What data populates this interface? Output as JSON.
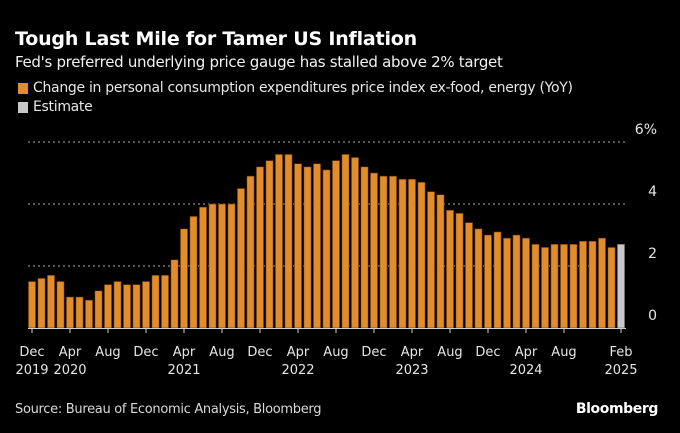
{
  "header": {
    "title": "Tough Last Mile for Tamer US Inflation",
    "subtitle": "Fed's preferred underlying price gauge has stalled above 2% target"
  },
  "legend": [
    {
      "label": "Change in personal consumption expenditures price index ex-food, energy (YoY)",
      "color": "#E28D2B"
    },
    {
      "label": "Estimate",
      "color": "#C8C8C8"
    }
  ],
  "footer": {
    "source": "Source: Bureau of Economic Analysis, Bloomberg",
    "brand": "Bloomberg"
  },
  "chart_data": {
    "type": "bar",
    "title": "Tough Last Mile for Tamer US Inflation",
    "subtitle": "Fed's preferred underlying price gauge has stalled above 2% target",
    "xlabel": "",
    "ylabel": "",
    "ylim": [
      0,
      6
    ],
    "y_ticks": [
      0,
      2,
      4,
      6
    ],
    "y_tick_labels": [
      "0",
      "2",
      "4",
      "6%"
    ],
    "y_axis_position": "right",
    "grid": true,
    "legend_position": "top-left",
    "x_tick_labels": [
      {
        "index": 0,
        "line1": "Dec",
        "line2": "2019"
      },
      {
        "index": 4,
        "line1": "Apr",
        "line2": "2020"
      },
      {
        "index": 8,
        "line1": "Aug",
        "line2": ""
      },
      {
        "index": 12,
        "line1": "Dec",
        "line2": ""
      },
      {
        "index": 16,
        "line1": "Apr",
        "line2": "2021"
      },
      {
        "index": 20,
        "line1": "Aug",
        "line2": ""
      },
      {
        "index": 24,
        "line1": "Dec",
        "line2": ""
      },
      {
        "index": 28,
        "line1": "Apr",
        "line2": "2022"
      },
      {
        "index": 32,
        "line1": "Aug",
        "line2": ""
      },
      {
        "index": 36,
        "line1": "Dec",
        "line2": ""
      },
      {
        "index": 40,
        "line1": "Apr",
        "line2": "2023"
      },
      {
        "index": 44,
        "line1": "Aug",
        "line2": ""
      },
      {
        "index": 48,
        "line1": "Dec",
        "line2": ""
      },
      {
        "index": 52,
        "line1": "Apr",
        "line2": "2024"
      },
      {
        "index": 56,
        "line1": "Aug",
        "line2": ""
      },
      {
        "index": 62,
        "line1": "Feb",
        "line2": "2025"
      }
    ],
    "categories": [
      "Dec 2019",
      "Jan 2020",
      "Feb 2020",
      "Mar 2020",
      "Apr 2020",
      "May 2020",
      "Jun 2020",
      "Jul 2020",
      "Aug 2020",
      "Sep 2020",
      "Oct 2020",
      "Nov 2020",
      "Dec 2020",
      "Jan 2021",
      "Feb 2021",
      "Mar 2021",
      "Apr 2021",
      "May 2021",
      "Jun 2021",
      "Jul 2021",
      "Aug 2021",
      "Sep 2021",
      "Oct 2021",
      "Nov 2021",
      "Dec 2021",
      "Jan 2022",
      "Feb 2022",
      "Mar 2022",
      "Apr 2022",
      "May 2022",
      "Jun 2022",
      "Jul 2022",
      "Aug 2022",
      "Sep 2022",
      "Oct 2022",
      "Nov 2022",
      "Dec 2022",
      "Jan 2023",
      "Feb 2023",
      "Mar 2023",
      "Apr 2023",
      "May 2023",
      "Jun 2023",
      "Jul 2023",
      "Aug 2023",
      "Sep 2023",
      "Oct 2023",
      "Nov 2023",
      "Dec 2023",
      "Jan 2024",
      "Feb 2024",
      "Mar 2024",
      "Apr 2024",
      "May 2024",
      "Jun 2024",
      "Jul 2024",
      "Aug 2024",
      "Sep 2024",
      "Oct 2024",
      "Nov 2024",
      "Dec 2024",
      "Jan 2025",
      "Feb 2025"
    ],
    "series": [
      {
        "name": "Change in personal consumption expenditures price index ex-food, energy (YoY)",
        "color": "#E28D2B",
        "values": [
          1.5,
          1.6,
          1.7,
          1.5,
          1.0,
          1.0,
          0.9,
          1.2,
          1.4,
          1.5,
          1.4,
          1.4,
          1.5,
          1.7,
          1.7,
          2.2,
          3.2,
          3.6,
          3.9,
          4.0,
          4.0,
          4.0,
          4.5,
          4.9,
          5.2,
          5.4,
          5.6,
          5.6,
          5.3,
          5.2,
          5.3,
          5.1,
          5.4,
          5.6,
          5.5,
          5.2,
          5.0,
          4.9,
          4.9,
          4.8,
          4.8,
          4.7,
          4.4,
          4.3,
          3.8,
          3.7,
          3.4,
          3.2,
          3.0,
          3.1,
          2.9,
          3.0,
          2.9,
          2.7,
          2.6,
          2.7,
          2.7,
          2.7,
          2.8,
          2.8,
          2.9,
          2.6,
          null
        ]
      },
      {
        "name": "Estimate",
        "color": "#C8C8C8",
        "values": [
          null,
          null,
          null,
          null,
          null,
          null,
          null,
          null,
          null,
          null,
          null,
          null,
          null,
          null,
          null,
          null,
          null,
          null,
          null,
          null,
          null,
          null,
          null,
          null,
          null,
          null,
          null,
          null,
          null,
          null,
          null,
          null,
          null,
          null,
          null,
          null,
          null,
          null,
          null,
          null,
          null,
          null,
          null,
          null,
          null,
          null,
          null,
          null,
          null,
          null,
          null,
          null,
          null,
          null,
          null,
          null,
          null,
          null,
          null,
          null,
          null,
          null,
          2.7
        ]
      }
    ]
  }
}
